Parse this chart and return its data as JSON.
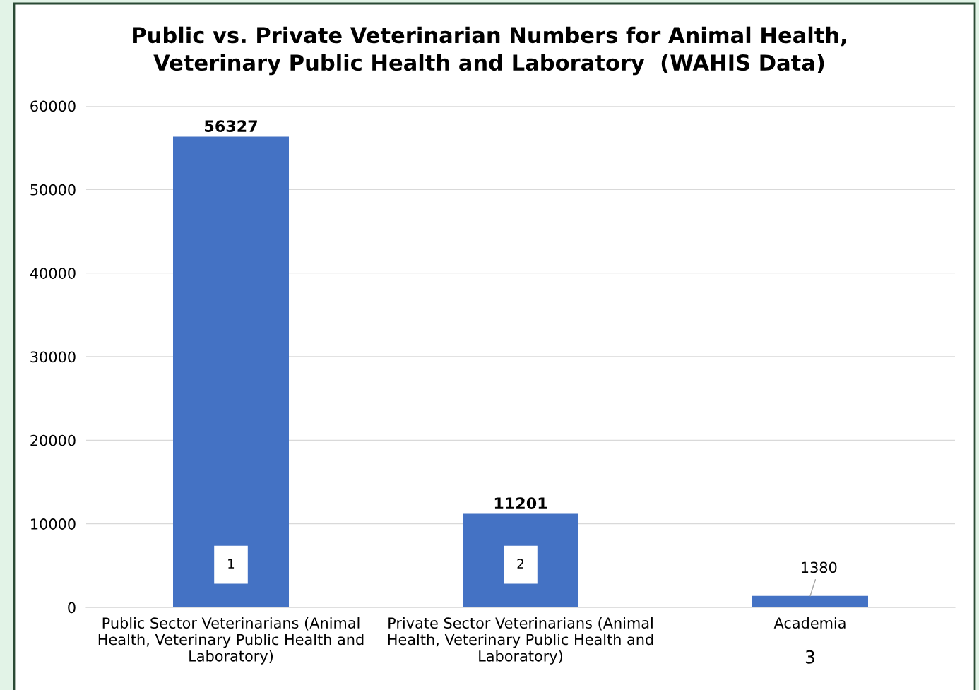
{
  "chart_data": {
    "type": "bar",
    "title": "Public vs. Private Veterinarian Numbers for Animal Health,\nVeterinary Public Health and Laboratory  (WAHIS Data)",
    "categories": [
      "Public Sector Veterinarians (Animal\nHealth, Veterinary Public Health and\nLaboratory)",
      "Private Sector Veterinarians (Animal\nHealth, Veterinary Public Health and\nLaboratory)",
      "Academia"
    ],
    "values": [
      56327,
      11201,
      1380
    ],
    "color": "#4472c4",
    "data_labels": true,
    "ylim": [
      0,
      60000
    ],
    "yticks": [
      0,
      10000,
      20000,
      30000,
      40000,
      50000,
      60000
    ],
    "grid": "y",
    "annotations": [
      "1",
      "2",
      "3"
    ]
  }
}
